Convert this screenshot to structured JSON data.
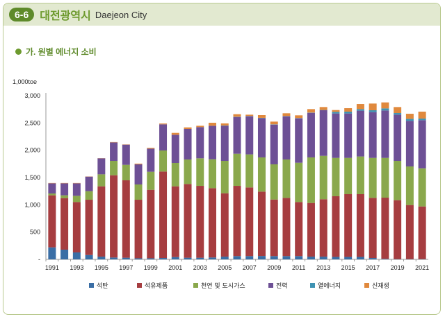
{
  "header": {
    "badge": "6-6",
    "title_ko": "대전광역시",
    "title_en": "Daejeon City"
  },
  "subtitle": "가. 원별 에너지 소비",
  "chart_data": {
    "type": "bar",
    "stacked": true,
    "ylabel": "1,000toe",
    "ylim": [
      0,
      3000
    ],
    "yticks": [
      0,
      500,
      1000,
      1500,
      2000,
      2500,
      3000
    ],
    "ytick_labels": [
      "-",
      "500",
      "1,000",
      "1,500",
      "2,000",
      "2,500",
      "3,000"
    ],
    "categories": [
      1991,
      1992,
      1993,
      1994,
      1995,
      1996,
      1997,
      1998,
      1999,
      2000,
      2001,
      2002,
      2003,
      2004,
      2005,
      2006,
      2007,
      2008,
      2009,
      2010,
      2011,
      2012,
      2013,
      2014,
      2015,
      2016,
      2017,
      2018,
      2019,
      2020,
      2021
    ],
    "xtick_labels": [
      "1991",
      "1993",
      "1995",
      "1997",
      "1999",
      "2001",
      "2003",
      "2005",
      "2007",
      "2009",
      "2011",
      "2013",
      "2015",
      "2017",
      "2019",
      "2021"
    ],
    "legend_position": "bottom",
    "series": [
      {
        "name": "석탄",
        "color": "#3a6ea5",
        "values": [
          220,
          178,
          127,
          80,
          50,
          34,
          30,
          20,
          20,
          25,
          42,
          30,
          30,
          35,
          50,
          60,
          60,
          62,
          60,
          60,
          60,
          50,
          50,
          45,
          45,
          45,
          25,
          10,
          5,
          5,
          5
        ]
      },
      {
        "name": "석유제품",
        "color": "#a63d40",
        "values": [
          954,
          945,
          924,
          1013,
          1289,
          1508,
          1419,
          1073,
          1255,
          1585,
          1297,
          1351,
          1317,
          1270,
          1162,
          1287,
          1258,
          1180,
          1037,
          1067,
          991,
          984,
          1052,
          1112,
          1150,
          1150,
          1102,
          1121,
          1080,
          991,
          965
        ]
      },
      {
        "name": "천연 및 도시가스",
        "color": "#8aa84c",
        "values": [
          34,
          51,
          114,
          157,
          220,
          263,
          284,
          280,
          331,
          386,
          428,
          450,
          505,
          530,
          593,
          589,
          606,
          627,
          645,
          704,
          720,
          835,
          796,
          703,
          665,
          691,
          733,
          729,
          720,
          707,
          699
        ]
      },
      {
        "name": "전력",
        "color": "#6d5095",
        "values": [
          186,
          220,
          229,
          267,
          293,
          339,
          369,
          368,
          424,
          479,
          517,
          559,
          572,
          614,
          644,
          674,
          699,
          720,
          728,
          792,
          814,
          817,
          835,
          814,
          814,
          839,
          839,
          869,
          848,
          835,
          882
        ]
      },
      {
        "name": "열에너지",
        "color": "#3f93b3",
        "values": [
          0,
          0,
          0,
          0,
          0,
          0,
          0,
          0,
          0,
          0,
          0,
          0,
          0,
          0,
          5,
          5,
          5,
          5,
          5,
          5,
          5,
          5,
          5,
          30,
          34,
          29,
          34,
          38,
          29,
          38,
          30
        ]
      },
      {
        "name": "신재생",
        "color": "#e0893d",
        "values": [
          6,
          6,
          6,
          3,
          3,
          6,
          5,
          14,
          15,
          15,
          34,
          29,
          25,
          55,
          38,
          46,
          24,
          50,
          50,
          50,
          50,
          63,
          54,
          33,
          63,
          93,
          123,
          110,
          110,
          93,
          127
        ]
      }
    ]
  }
}
